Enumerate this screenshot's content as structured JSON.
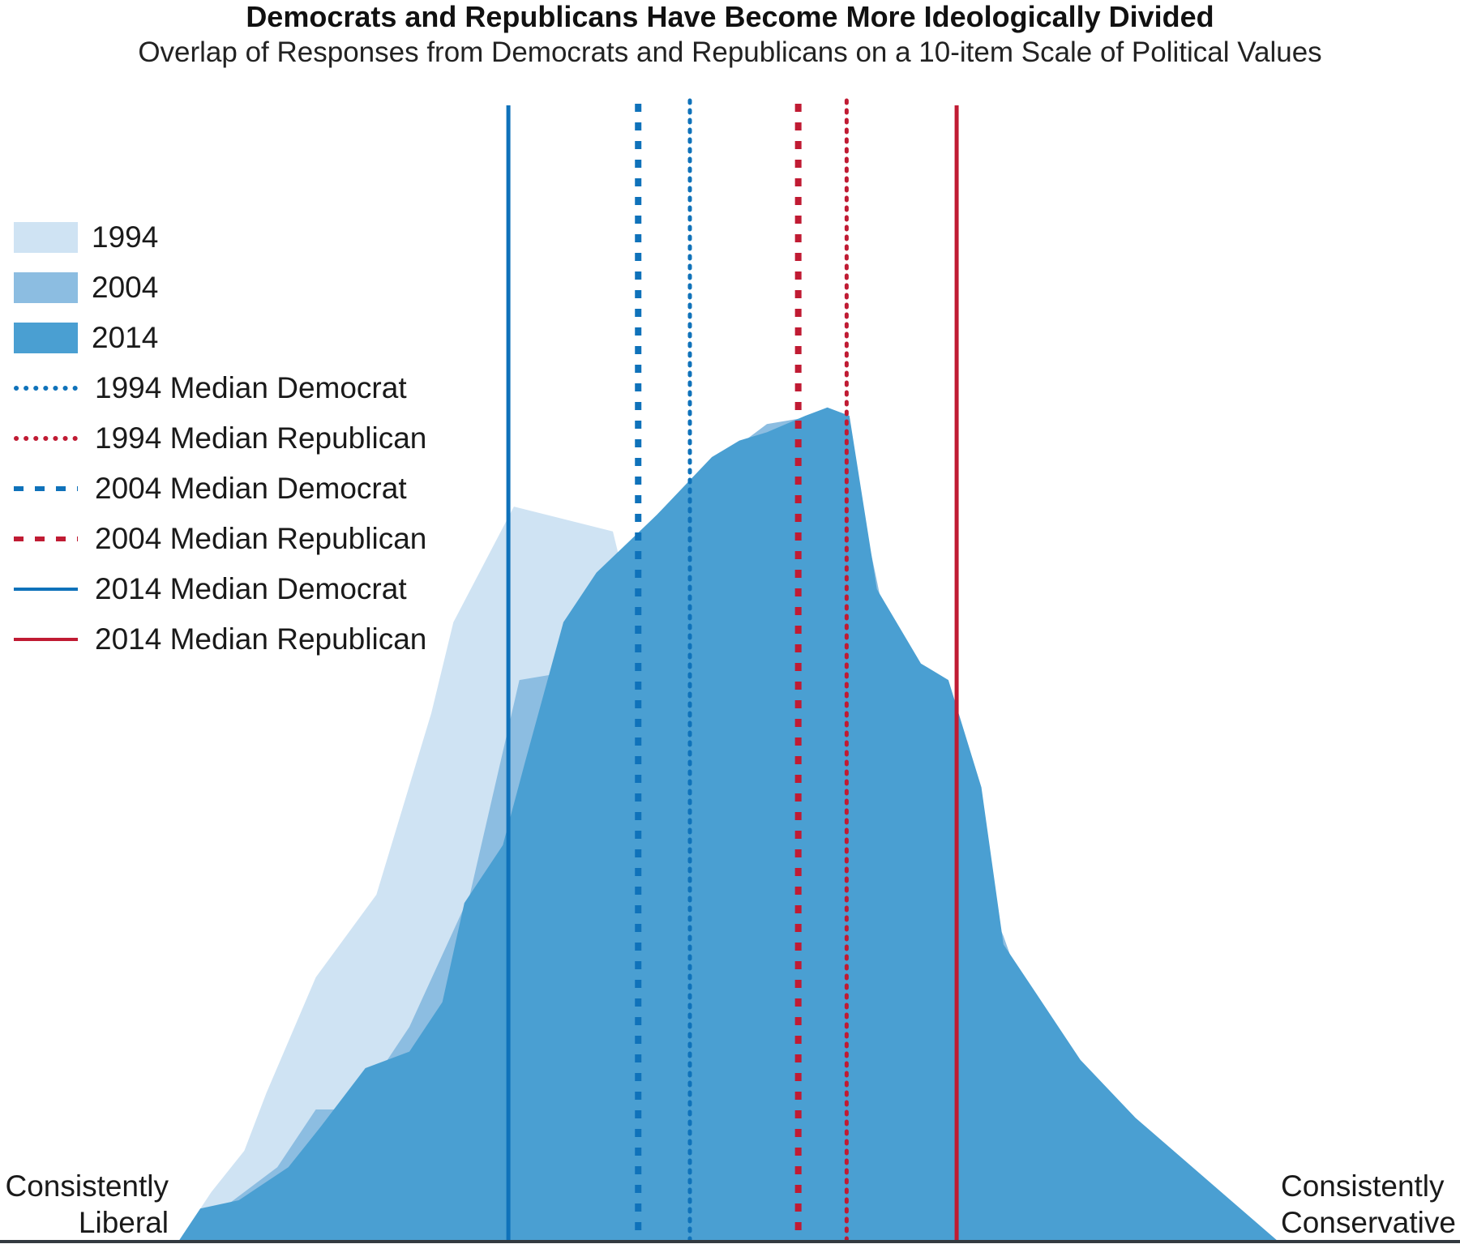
{
  "chart_data": {
    "type": "area",
    "title": "Democrats and Republicans Have Become More Ideologically Divided",
    "subtitle": "Overlap of Responses from Democrats and Republicans on a 10-item Scale of Political Values",
    "x_axis": {
      "left_label": [
        "Consistently",
        "Liberal"
      ],
      "right_label": [
        "Consistently",
        "Conservative"
      ],
      "range": [
        -10,
        10
      ],
      "ticks_shown": false
    },
    "y_axis": {
      "range": [
        0,
        1
      ],
      "shown": false
    },
    "grid": false,
    "legend_position": "left",
    "series": [
      {
        "name": "1994",
        "color": "#cfe3f3",
        "points": [
          [
            -10,
            0
          ],
          [
            -9.4,
            0.06
          ],
          [
            -8.8,
            0.11
          ],
          [
            -8.4,
            0.18
          ],
          [
            -7.5,
            0.32
          ],
          [
            -6.4,
            0.42
          ],
          [
            -5.4,
            0.64
          ],
          [
            -5.0,
            0.75
          ],
          [
            -3.9,
            0.89
          ],
          [
            -2.1,
            0.86
          ],
          [
            -1.7,
            0.75
          ],
          [
            0.2,
            0.74
          ],
          [
            1.6,
            0.74
          ],
          [
            2.1,
            0.74
          ],
          [
            2.7,
            0.55
          ],
          [
            3.5,
            0.42
          ],
          [
            4.5,
            0.33
          ],
          [
            5.2,
            0.19
          ],
          [
            6.4,
            0.14
          ],
          [
            7.7,
            0.09
          ],
          [
            8.2,
            0.05
          ],
          [
            10,
            0
          ]
        ]
      },
      {
        "name": "2004",
        "color": "#8cbde1",
        "points": [
          [
            -10,
            0
          ],
          [
            -9.2,
            0.04
          ],
          [
            -8.2,
            0.09
          ],
          [
            -7.5,
            0.16
          ],
          [
            -6.8,
            0.16
          ],
          [
            -5.8,
            0.26
          ],
          [
            -4.7,
            0.42
          ],
          [
            -3.8,
            0.68
          ],
          [
            -2.9,
            0.69
          ],
          [
            -2.2,
            0.82
          ],
          [
            -1.0,
            0.9
          ],
          [
            -0.1,
            0.95
          ],
          [
            0.7,
            0.99
          ],
          [
            1.6,
            1.0
          ],
          [
            2.1,
            0.99
          ],
          [
            2.7,
            0.8
          ],
          [
            3.1,
            0.67
          ],
          [
            3.6,
            0.55
          ],
          [
            4.3,
            0.48
          ],
          [
            5.0,
            0.37
          ],
          [
            5.8,
            0.22
          ],
          [
            6.6,
            0.15
          ],
          [
            7.2,
            0.08
          ],
          [
            10,
            0
          ]
        ]
      },
      {
        "name": "2014",
        "color": "#4a9fd2",
        "points": [
          [
            -10,
            0
          ],
          [
            -9.6,
            0.04
          ],
          [
            -8.9,
            0.05
          ],
          [
            -8.0,
            0.09
          ],
          [
            -7.4,
            0.14
          ],
          [
            -6.6,
            0.21
          ],
          [
            -5.8,
            0.23
          ],
          [
            -5.2,
            0.29
          ],
          [
            -4.8,
            0.41
          ],
          [
            -4.1,
            0.48
          ],
          [
            -3.7,
            0.58
          ],
          [
            -3.0,
            0.75
          ],
          [
            -2.4,
            0.81
          ],
          [
            -1.3,
            0.88
          ],
          [
            -0.3,
            0.95
          ],
          [
            0.2,
            0.97
          ],
          [
            0.7,
            0.98
          ],
          [
            1.4,
            1.0
          ],
          [
            1.8,
            1.01
          ],
          [
            2.2,
            1.0
          ],
          [
            2.7,
            0.79
          ],
          [
            3.5,
            0.7
          ],
          [
            4.0,
            0.68
          ],
          [
            4.6,
            0.55
          ],
          [
            5.0,
            0.36
          ],
          [
            5.6,
            0.3
          ],
          [
            6.4,
            0.22
          ],
          [
            7.4,
            0.15
          ],
          [
            10,
            0
          ]
        ]
      }
    ],
    "medians": [
      {
        "name": "1994 Median Democrat",
        "year": "1994",
        "party": "Democrat",
        "x": -0.7,
        "style": "dotted",
        "color": "#0f72ba"
      },
      {
        "name": "1994 Median Republican",
        "year": "1994",
        "party": "Republican",
        "x": 2.15,
        "style": "dotted",
        "color": "#c01b33"
      },
      {
        "name": "2004 Median Democrat",
        "year": "2004",
        "party": "Democrat",
        "x": -1.64,
        "style": "dashed",
        "color": "#0f72ba"
      },
      {
        "name": "2004 Median Republican",
        "year": "2004",
        "party": "Republican",
        "x": 1.27,
        "style": "dashed",
        "color": "#c01b33"
      },
      {
        "name": "2014 Median Democrat",
        "year": "2014",
        "party": "Democrat",
        "x": -4.0,
        "style": "solid",
        "color": "#0f72ba"
      },
      {
        "name": "2014 Median Republican",
        "year": "2014",
        "party": "Republican",
        "x": 4.15,
        "style": "solid",
        "color": "#c01b33"
      }
    ]
  },
  "legend": {
    "items": [
      {
        "label": "1994",
        "kind": "swatch",
        "color": "#cfe3f3"
      },
      {
        "label": "2004",
        "kind": "swatch",
        "color": "#8cbde1"
      },
      {
        "label": "2014",
        "kind": "swatch",
        "color": "#4a9fd2"
      },
      {
        "label": "1994 Median Democrat",
        "kind": "dotted",
        "color": "#0f72ba"
      },
      {
        "label": "1994 Median Republican",
        "kind": "dotted",
        "color": "#c01b33"
      },
      {
        "label": "2004 Median Democrat",
        "kind": "dashed",
        "color": "#0f72ba"
      },
      {
        "label": "2004 Median Republican",
        "kind": "dashed",
        "color": "#c01b33"
      },
      {
        "label": "2014 Median Democrat",
        "kind": "solid",
        "color": "#0f72ba"
      },
      {
        "label": "2014 Median Republican",
        "kind": "solid",
        "color": "#c01b33"
      }
    ]
  }
}
